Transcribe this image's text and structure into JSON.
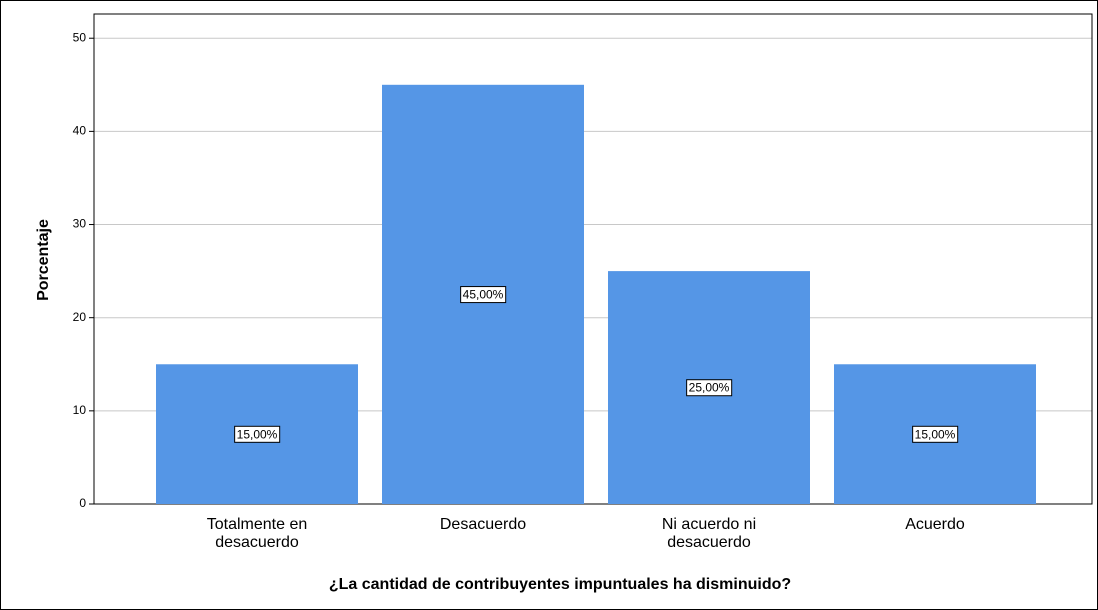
{
  "chart_data": {
    "type": "bar",
    "x_label": "¿La cantidad de contribuyentes impuntuales ha disminuido?",
    "y_label": "Porcentaje",
    "categories": [
      "Totalmente en desacuerdo",
      "Desacuerdo",
      "Ni acuerdo ni desacuerdo",
      "Acuerdo"
    ],
    "values": [
      15,
      45,
      25,
      15
    ],
    "value_labels": [
      "15,00%",
      "45,00%",
      "25,00%",
      "15,00%"
    ],
    "color": "#5596e6",
    "ylim": [
      0,
      52.6
    ],
    "yticks": [
      0,
      10,
      20,
      30,
      40,
      50
    ],
    "grid": true
  }
}
